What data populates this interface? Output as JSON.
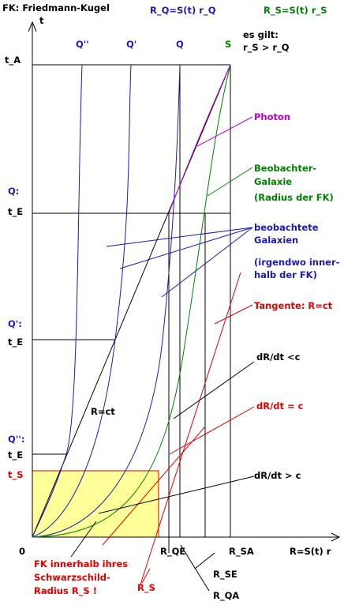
{
  "title": "FK: Friedmann-Kugel",
  "axes": {
    "y_label": "t",
    "x_label": "R=S(t) r",
    "origin": "0"
  },
  "formulas": {
    "rq": "R_Q=S(t) r_Q",
    "rs": "R_S=S(t) r_S"
  },
  "condition": {
    "line1": "es gilt:",
    "line2": "r_S > r_Q"
  },
  "curve_labels": {
    "q2": "Q''",
    "q1": "Q'",
    "q": "Q",
    "s": "S"
  },
  "t_labels": {
    "tA": "t_A",
    "q_marker": "Q:",
    "tE_q": "t_E",
    "q1_marker": "Q':",
    "tE_q1": "t_E",
    "q2_marker": "Q'':",
    "tE_q2": "t_E",
    "tS": "t_S"
  },
  "annotations": {
    "photon": "Photon",
    "observer_1": "Beobachter-",
    "observer_2": "Galaxie",
    "observer_3": "(Radius der FK)",
    "observed_1": "beobachtete",
    "observed_2": "Galaxien",
    "observed_3": "(irgendwo inner-",
    "observed_4": "halb der FK)",
    "tangent": "Tangente: R=ct",
    "slope_lt": "dR/dt <c",
    "slope_eq": "dR/dt = c",
    "slope_gt": "dR/dt > c",
    "r_ct": "R=ct",
    "fk_1": "FK innerhalb ihres",
    "fk_2": "Schwarzschild-",
    "fk_3": "Radius R_S !"
  },
  "x_ticks": {
    "rs": "R_S",
    "rqe": "R_QE",
    "rqa": "R_QA",
    "rse": "R_SE",
    "rsa": "R_SA"
  },
  "colors": {
    "axis": "#000000",
    "galaxy_curves": "#1a1ab4",
    "observer_curve": "#008000",
    "photon": "#c000c0",
    "tangent": "#e00000",
    "schwarzschild_fill": "#ffff99",
    "schwarzschild_edge": "#cc0000"
  }
}
